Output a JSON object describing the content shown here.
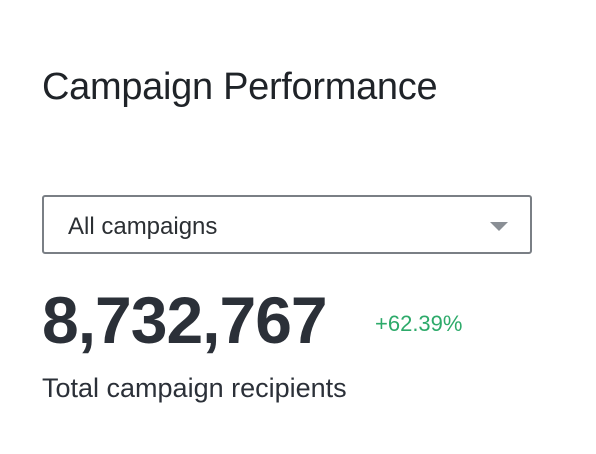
{
  "header": {
    "title": "Campaign Performance"
  },
  "filter": {
    "selected": "All campaigns"
  },
  "metric": {
    "value": "8,732,767",
    "change": "+62.39%",
    "label": "Total campaign recipients"
  }
}
